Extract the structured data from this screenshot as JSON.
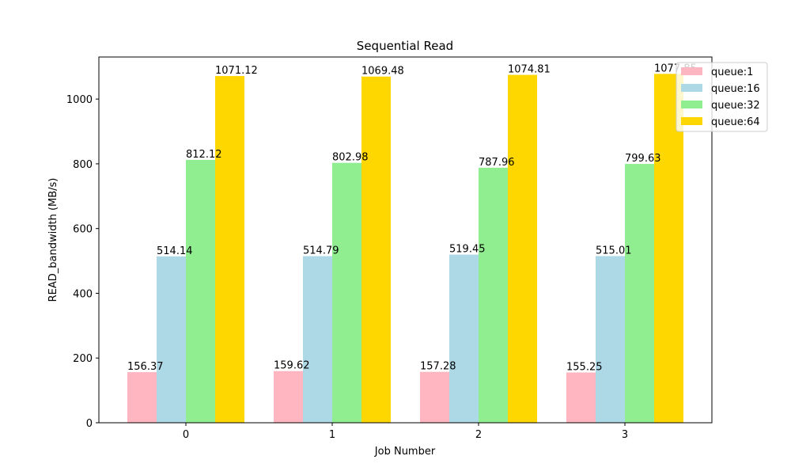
{
  "chart_data": {
    "type": "bar",
    "title": "Sequential Read",
    "xlabel": "Job Number",
    "ylabel": "READ_bandwidth (MB/s)",
    "categories": [
      "0",
      "1",
      "2",
      "3"
    ],
    "ylim": [
      0,
      1130
    ],
    "yticks": [
      0,
      200,
      400,
      600,
      800,
      1000
    ],
    "grid": false,
    "legend_position": "top-right",
    "series": [
      {
        "name": "queue:1",
        "color": "#ffb6c1",
        "values": [
          156.37,
          159.62,
          157.28,
          155.25
        ],
        "labels": [
          "156.37",
          "159.62",
          "157.28",
          "155.25"
        ]
      },
      {
        "name": "queue:16",
        "color": "#add8e6",
        "values": [
          514.14,
          514.79,
          519.45,
          515.01
        ],
        "labels": [
          "514.14",
          "514.79",
          "519.45",
          "515.01"
        ]
      },
      {
        "name": "queue:32",
        "color": "#90ee90",
        "values": [
          812.12,
          802.98,
          787.96,
          799.63
        ],
        "labels": [
          "812.12",
          "802.98",
          "787.96",
          "799.63"
        ]
      },
      {
        "name": "queue:64",
        "color": "#ffd700",
        "values": [
          1071.12,
          1069.48,
          1074.81,
          1077.85
        ],
        "labels": [
          "1071.12",
          "1069.48",
          "1074.81",
          "1077.85"
        ]
      }
    ]
  }
}
